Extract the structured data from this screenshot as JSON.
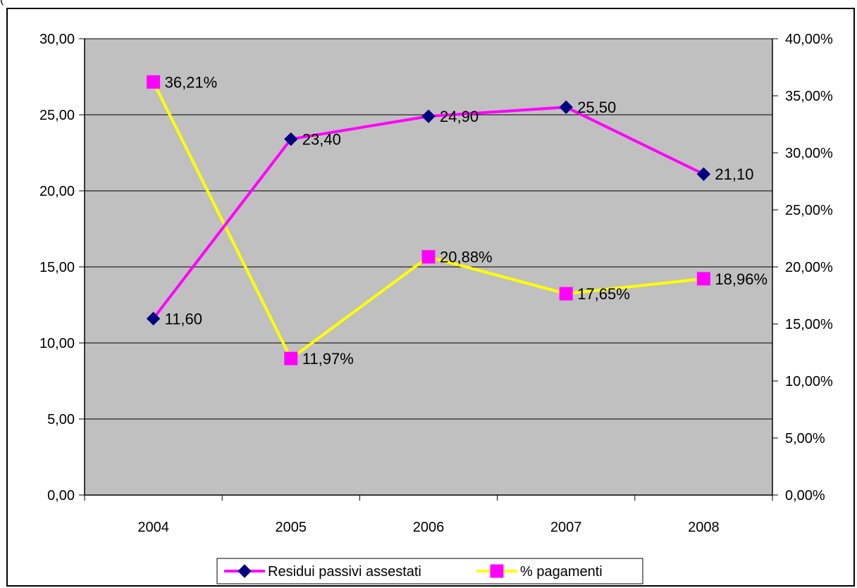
{
  "top_fragment": "(",
  "chart_data": {
    "type": "line",
    "categories": [
      "2004",
      "2005",
      "2006",
      "2007",
      "2008"
    ],
    "series": [
      {
        "name": "Residui passivi assestati",
        "axis": "left",
        "values": [
          11.6,
          23.4,
          24.9,
          25.5,
          21.1
        ],
        "labels": [
          "11,60",
          "23,40",
          "24,90",
          "25,50",
          "21,10"
        ],
        "line_color": "#FF00FF",
        "marker": "diamond",
        "marker_color": "#000080"
      },
      {
        "name": "% pagamenti",
        "axis": "right",
        "values": [
          36.21,
          11.97,
          20.88,
          17.65,
          18.96
        ],
        "labels": [
          "36,21%",
          "11,97%",
          "20,88%",
          "17,65%",
          "18,96%"
        ],
        "line_color": "#FFFF00",
        "marker": "square",
        "marker_color": "#FF00FF"
      }
    ],
    "y_left": {
      "lim": [
        0,
        30
      ],
      "ticks": [
        0,
        5,
        10,
        15,
        20,
        25,
        30
      ],
      "tick_labels": [
        "0,00",
        "5,00",
        "10,00",
        "15,00",
        "20,00",
        "25,00",
        "30,00"
      ]
    },
    "y_right": {
      "lim": [
        0,
        40
      ],
      "ticks": [
        0,
        5,
        10,
        15,
        20,
        25,
        30,
        35,
        40
      ],
      "tick_labels": [
        "0,00%",
        "5,00%",
        "10,00%",
        "15,00%",
        "20,00%",
        "25,00%",
        "30,00%",
        "35,00%",
        "40,00%"
      ]
    },
    "grid": true,
    "plot_background": "#C0C0C0",
    "legend_position": "bottom"
  }
}
